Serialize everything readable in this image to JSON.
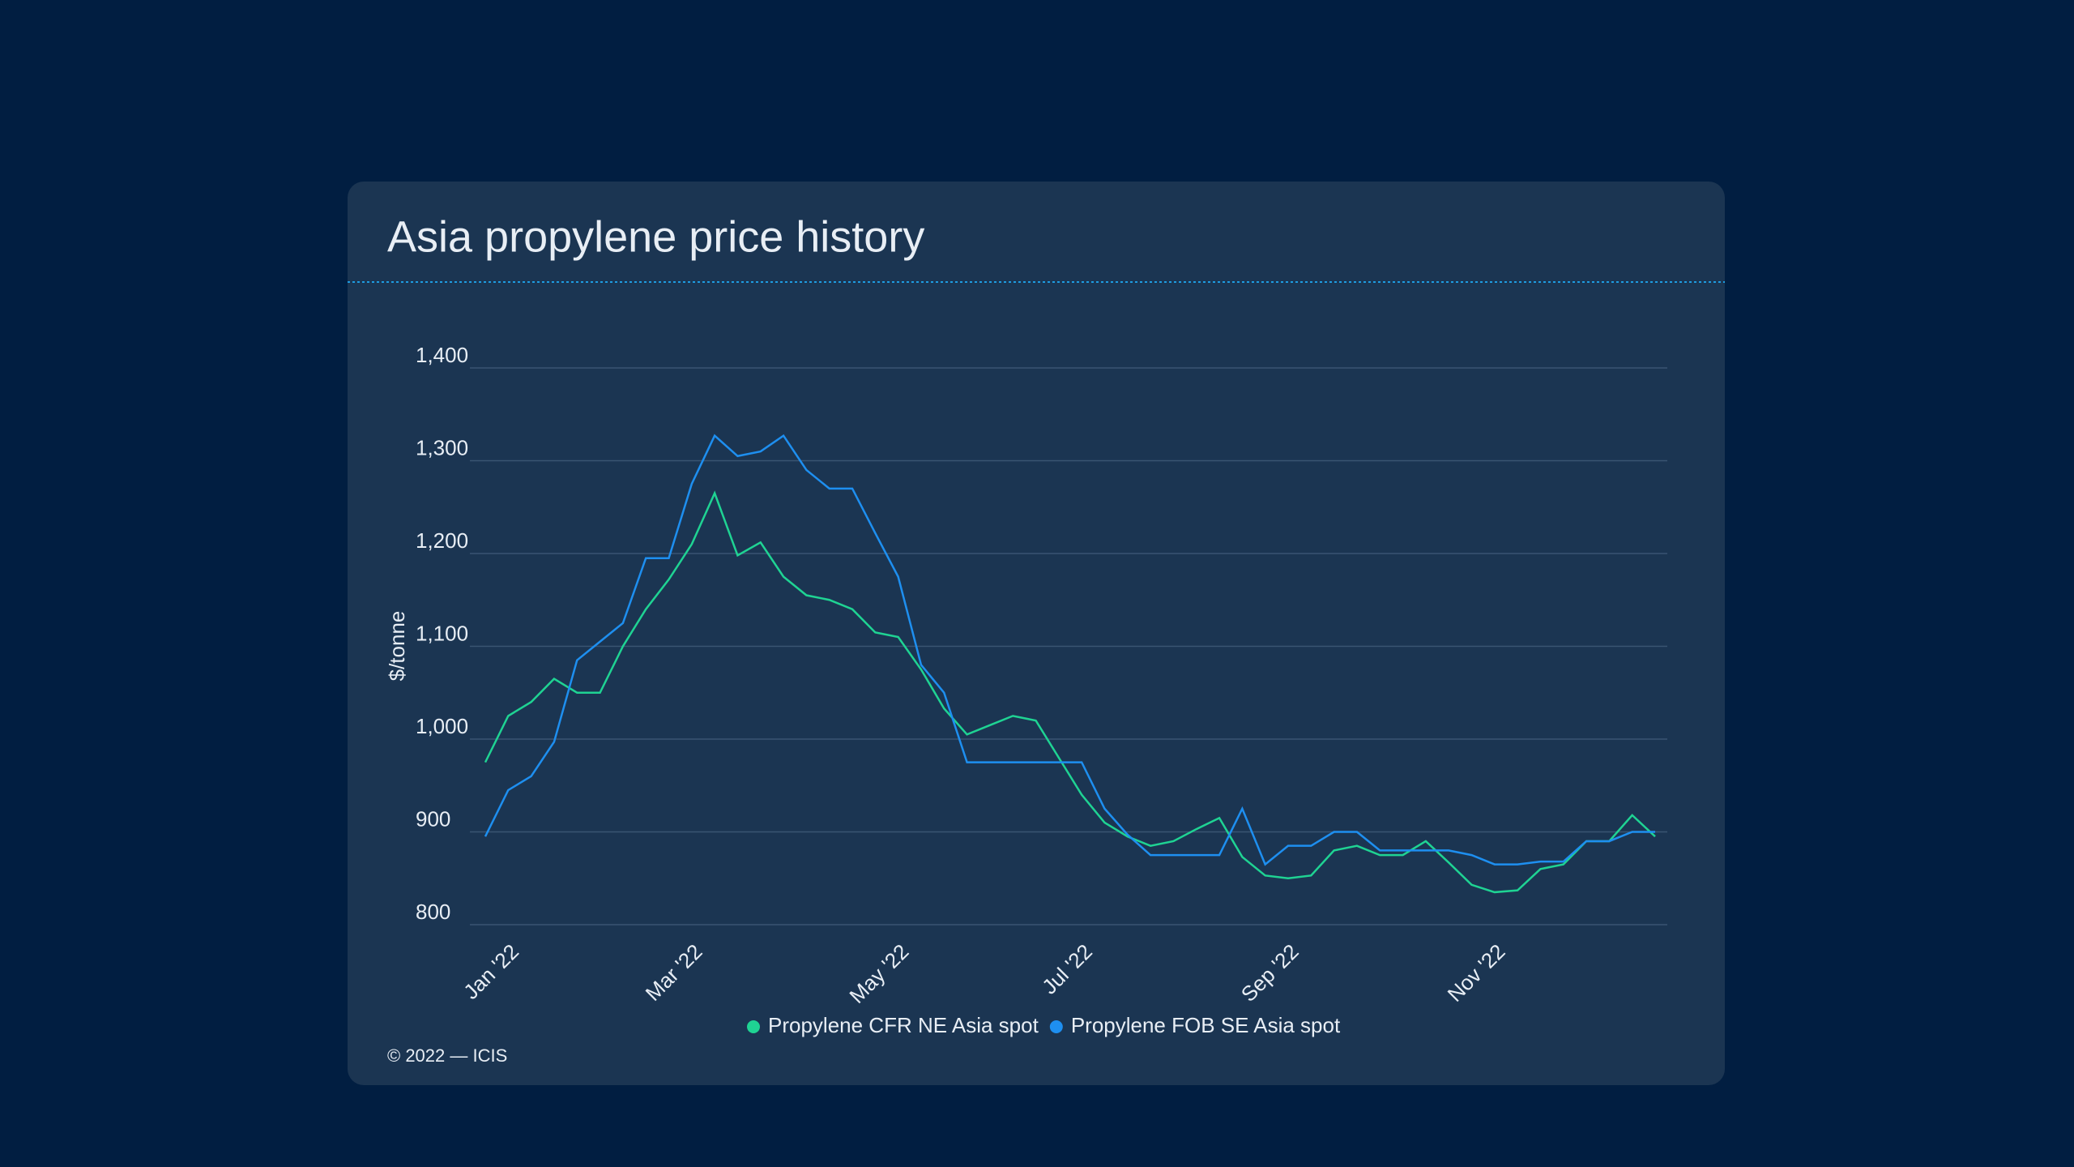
{
  "chart_data": {
    "type": "line",
    "title": "Asia propylene price history",
    "y_label": "$/tonne",
    "footer": "© 2022 — ICIS",
    "categories": [
      "Jan '22",
      null,
      null,
      null,
      null,
      null,
      null,
      null,
      "Mar '22",
      null,
      null,
      null,
      null,
      null,
      null,
      null,
      null,
      "May '22",
      null,
      null,
      null,
      null,
      null,
      null,
      null,
      "Jul '22",
      null,
      null,
      null,
      null,
      null,
      null,
      null,
      null,
      "Sep '22",
      null,
      null,
      null,
      null,
      null,
      null,
      null,
      null,
      "Nov '22",
      null,
      null,
      null,
      null,
      null,
      null,
      null,
      null
    ],
    "series": [
      {
        "name": "Propylene CFR NE Asia spot",
        "color": "#1fd393",
        "values": [
          975,
          1025,
          1040,
          1065,
          1050,
          1050,
          1100,
          1140,
          1172,
          1210,
          1265,
          1198,
          1212,
          1175,
          1155,
          1150,
          1140,
          1115,
          1110,
          1075,
          1033,
          1005,
          1015,
          1025,
          1020,
          980,
          940,
          910,
          895,
          885,
          890,
          903,
          915,
          873,
          853,
          850,
          853,
          880,
          885,
          875,
          875,
          890,
          867,
          843,
          835,
          837,
          860,
          865,
          890,
          890,
          918,
          895
        ]
      },
      {
        "name": "Propylene FOB SE Asia spot",
        "color": "#1e8ff0",
        "values": [
          895,
          945,
          960,
          997,
          1085,
          1105,
          1125,
          1195,
          1195,
          1275,
          1327,
          1305,
          1310,
          1327,
          1290,
          1270,
          1270,
          1222,
          1175,
          1080,
          1050,
          975,
          975,
          975,
          975,
          975,
          975,
          925,
          897,
          875,
          875,
          875,
          875,
          925,
          865,
          885,
          885,
          900,
          900,
          880,
          880,
          880,
          880,
          875,
          865,
          865,
          868,
          868,
          890,
          890,
          900,
          900
        ]
      }
    ],
    "ylim": [
      800,
      1400
    ],
    "yticks": [
      {
        "value": 800,
        "label": "800"
      },
      {
        "value": 900,
        "label": "900"
      },
      {
        "value": 1000,
        "label": "1,000"
      },
      {
        "value": 1100,
        "label": "1,100"
      },
      {
        "value": 1200,
        "label": "1,200"
      },
      {
        "value": 1300,
        "label": "1,300"
      },
      {
        "value": 1400,
        "label": "1,400"
      }
    ],
    "grid": true
  }
}
